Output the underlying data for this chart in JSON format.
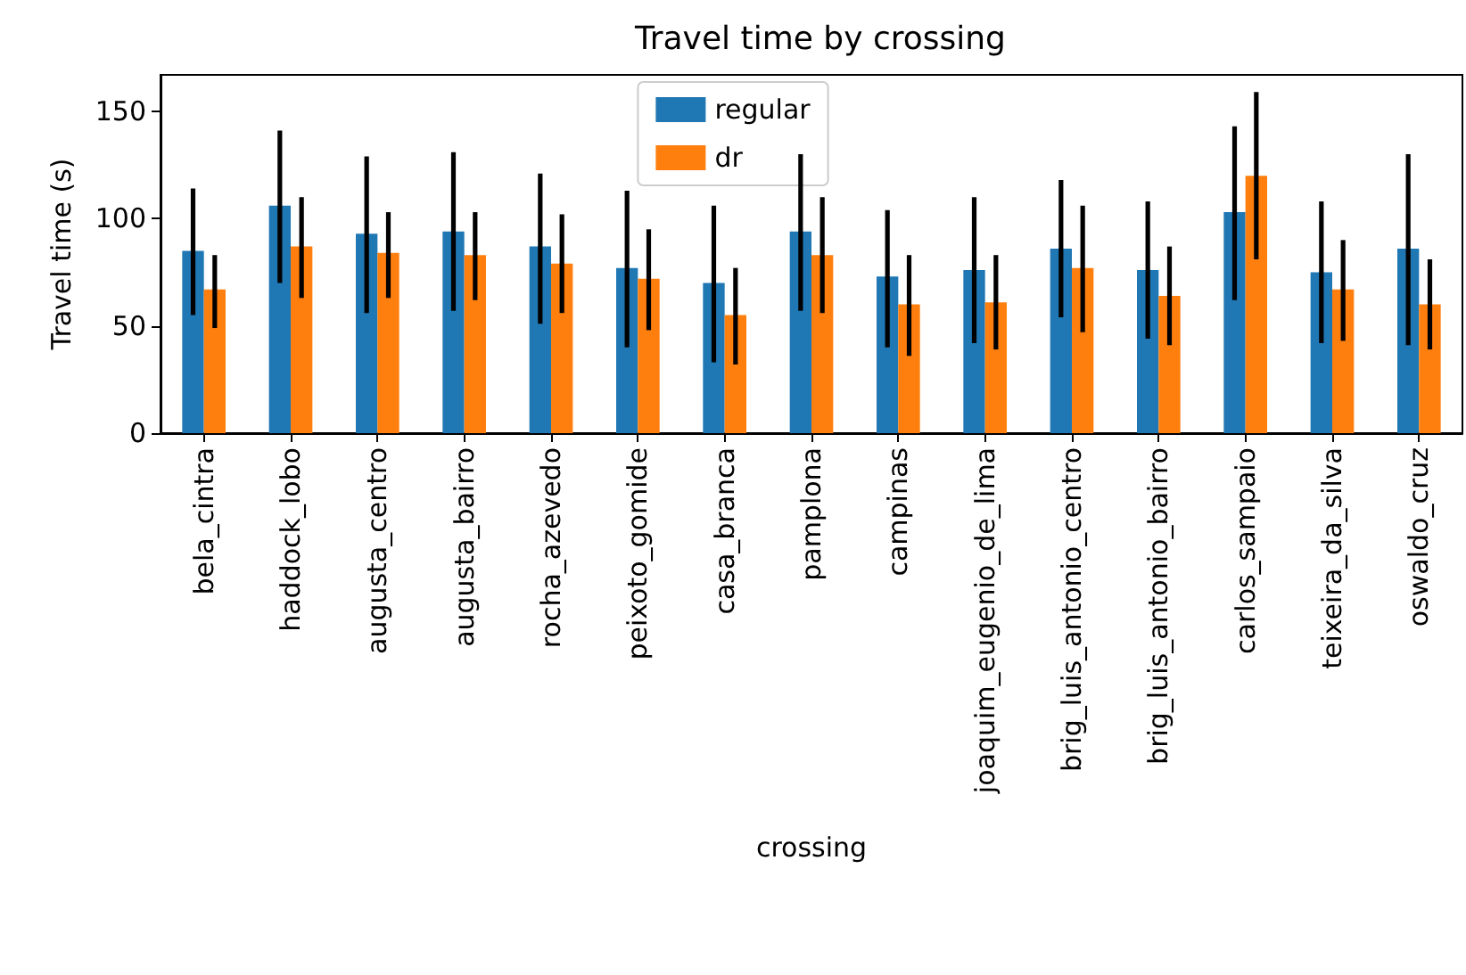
{
  "chart_data": {
    "type": "bar",
    "title": "Travel time by crossing",
    "xlabel": "crossing",
    "ylabel": "Travel time (s)",
    "categories": [
      "bela_cintra",
      "haddock_lobo",
      "augusta_centro",
      "augusta_bairro",
      "rocha_azevedo",
      "peixoto_gomide",
      "casa_branca",
      "pamplona",
      "campinas",
      "joaquim_eugenio_de_lima",
      "brig_luis_antonio_centro",
      "brig_luis_antonio_bairro",
      "carlos_sampaio",
      "teixeira_da_silva",
      "oswaldo_cruz"
    ],
    "series": [
      {
        "name": "regular",
        "color": "#1f77b4",
        "values": [
          85,
          106,
          93,
          94,
          87,
          77,
          70,
          94,
          73,
          76,
          86,
          76,
          103,
          75,
          86
        ],
        "errors": [
          [
            55,
            114
          ],
          [
            70,
            141
          ],
          [
            56,
            129
          ],
          [
            57,
            131
          ],
          [
            51,
            121
          ],
          [
            40,
            113
          ],
          [
            33,
            106
          ],
          [
            57,
            130
          ],
          [
            40,
            104
          ],
          [
            42,
            110
          ],
          [
            54,
            118
          ],
          [
            44,
            108
          ],
          [
            62,
            143
          ],
          [
            42,
            108
          ],
          [
            41,
            130
          ]
        ]
      },
      {
        "name": "dr",
        "color": "#ff7f0e",
        "values": [
          67,
          87,
          84,
          83,
          79,
          72,
          55,
          83,
          60,
          61,
          77,
          64,
          120,
          67,
          60
        ],
        "errors": [
          [
            49,
            83
          ],
          [
            63,
            110
          ],
          [
            63,
            103
          ],
          [
            62,
            103
          ],
          [
            56,
            102
          ],
          [
            48,
            95
          ],
          [
            32,
            77
          ],
          [
            56,
            110
          ],
          [
            36,
            83
          ],
          [
            39,
            83
          ],
          [
            47,
            106
          ],
          [
            41,
            87
          ],
          [
            81,
            159
          ],
          [
            43,
            90
          ],
          [
            39,
            81
          ]
        ]
      }
    ],
    "ylim": [
      0,
      167
    ],
    "yticks": [
      0,
      50,
      100,
      150
    ],
    "grid": false,
    "legend": "top"
  }
}
